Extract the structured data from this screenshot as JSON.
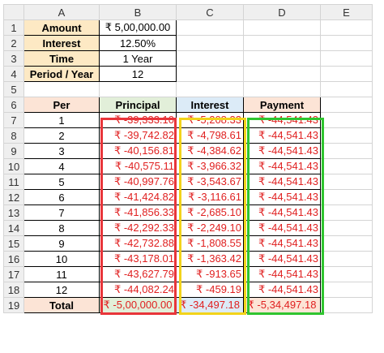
{
  "columns": [
    "A",
    "B",
    "C",
    "D",
    "E"
  ],
  "rows": [
    "1",
    "2",
    "3",
    "4",
    "5",
    "6",
    "7",
    "8",
    "9",
    "10",
    "11",
    "12",
    "13",
    "14",
    "15",
    "16",
    "17",
    "18",
    "19"
  ],
  "inputs": [
    {
      "label": "Amount",
      "value": "₹ 5,00,000.00"
    },
    {
      "label": "Interest",
      "value": "12.50%"
    },
    {
      "label": "Time",
      "value": "1 Year"
    },
    {
      "label": "Period / Year",
      "value": "12"
    }
  ],
  "table": {
    "headers": [
      "Per",
      "Principal",
      "Interest",
      "Payment"
    ],
    "rows": [
      [
        "1",
        "₹ -39,333.10",
        "₹ -5,208.33",
        "₹ -44,541.43"
      ],
      [
        "2",
        "₹ -39,742.82",
        "₹ -4,798.61",
        "₹ -44,541.43"
      ],
      [
        "3",
        "₹ -40,156.81",
        "₹ -4,384.62",
        "₹ -44,541.43"
      ],
      [
        "4",
        "₹ -40,575.11",
        "₹ -3,966.32",
        "₹ -44,541.43"
      ],
      [
        "5",
        "₹ -40,997.76",
        "₹ -3,543.67",
        "₹ -44,541.43"
      ],
      [
        "6",
        "₹ -41,424.82",
        "₹ -3,116.61",
        "₹ -44,541.43"
      ],
      [
        "7",
        "₹ -41,856.33",
        "₹ -2,685.10",
        "₹ -44,541.43"
      ],
      [
        "8",
        "₹ -42,292.33",
        "₹ -2,249.10",
        "₹ -44,541.43"
      ],
      [
        "9",
        "₹ -42,732.88",
        "₹ -1,808.55",
        "₹ -44,541.43"
      ],
      [
        "10",
        "₹ -43,178.01",
        "₹ -1,363.42",
        "₹ -44,541.43"
      ],
      [
        "11",
        "₹ -43,627.79",
        "₹ -913.65",
        "₹ -44,541.43"
      ],
      [
        "12",
        "₹ -44,082.24",
        "₹ -459.19",
        "₹ -44,541.43"
      ]
    ],
    "total": [
      "Total",
      "₹ -5,00,000.00",
      "₹ -34,497.18",
      "₹ -5,34,497.18"
    ]
  },
  "colors": {
    "principal_highlight": "#e8353a",
    "interest_highlight": "#f2d31b",
    "payment_highlight": "#2fc52f",
    "negative_text": "#e02020"
  }
}
